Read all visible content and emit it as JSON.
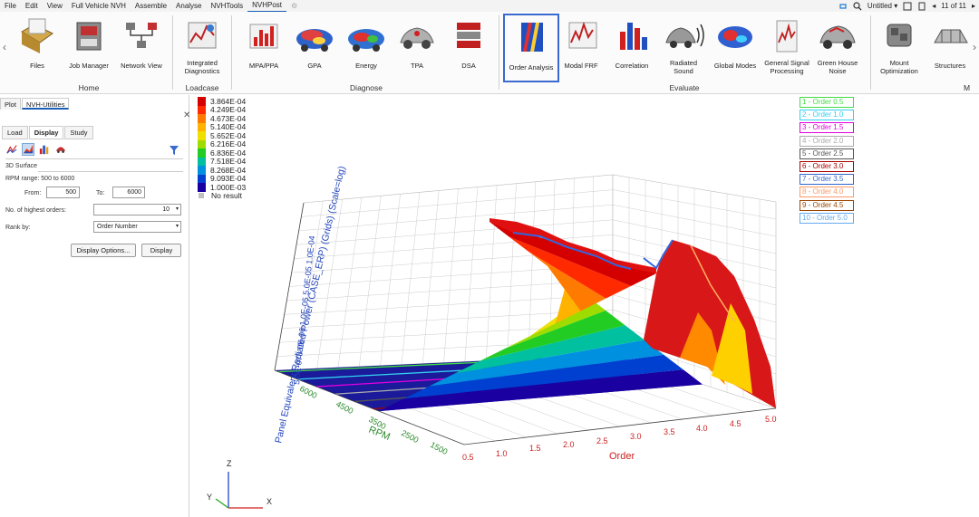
{
  "menu": {
    "items": [
      "File",
      "Edit",
      "View",
      "Full Vehicle NVH",
      "Assemble",
      "Analyse",
      "NVHTools",
      "NVHPost"
    ],
    "active": "NVHPost",
    "untitled": "Untitled",
    "page_counter": "11 of 11"
  },
  "ribbon": {
    "buttons": [
      {
        "label": "Files",
        "icon": "files-icon"
      },
      {
        "label": "Job Manager",
        "icon": "job-manager-icon"
      },
      {
        "label": "Network View",
        "icon": "network-view-icon"
      },
      {
        "label": "Integrated\nDiagnostics",
        "icon": "integrated-diagnostics-icon"
      },
      {
        "label": "MPA/PPA",
        "icon": "mpa-ppa-icon"
      },
      {
        "label": "GPA",
        "icon": "gpa-icon"
      },
      {
        "label": "Energy",
        "icon": "energy-icon"
      },
      {
        "label": "TPA",
        "icon": "tpa-icon"
      },
      {
        "label": "DSA",
        "icon": "dsa-icon"
      },
      {
        "label": "Order Analysis",
        "icon": "order-analysis-icon"
      },
      {
        "label": "Modal FRF",
        "icon": "modal-frf-icon"
      },
      {
        "label": "Correlation",
        "icon": "correlation-icon"
      },
      {
        "label": "Radiated\nSound",
        "icon": "radiated-sound-icon"
      },
      {
        "label": "Global Modes",
        "icon": "global-modes-icon"
      },
      {
        "label": "General Signal\nProcessing",
        "icon": "general-signal-processing-icon"
      },
      {
        "label": "Green House\nNoise",
        "icon": "green-house-noise-icon"
      },
      {
        "label": "Mount\nOptimization",
        "icon": "mount-optimization-icon"
      },
      {
        "label": "Structures",
        "icon": "structures-icon"
      }
    ],
    "groups": [
      "Home",
      "Loadcase",
      "Diagnose",
      "Evaluate",
      "M"
    ]
  },
  "panel": {
    "tabs": [
      "Plot",
      "NVH-Utilities"
    ],
    "subtabs": [
      "Load",
      "Display",
      "Study"
    ],
    "section_title": "3D Surface",
    "rpm_range": "RPM range: 500 to 6000",
    "from_label": "From:",
    "from_value": "500",
    "to_label": "To:",
    "to_value": "6000",
    "highest_orders_label": "No. of highest orders:",
    "highest_orders_value": "10",
    "rank_by_label": "Rank by:",
    "rank_by_value": "Order Number",
    "display_options_button": "Display Options...",
    "display_button": "Display"
  },
  "plot": {
    "colorbar": {
      "labels": [
        "3.864E-04",
        "4.249E-04",
        "4.673E-04",
        "5.140E-04",
        "5.652E-04",
        "6.216E-04",
        "6.836E-04",
        "7.518E-04",
        "8.268E-04",
        "9.093E-04",
        "1.000E-03"
      ],
      "colors": [
        "#d40000",
        "#ff2a00",
        "#ff7a00",
        "#ffb300",
        "#f0e000",
        "#9edc00",
        "#22cc22",
        "#00c0a0",
        "#0090e0",
        "#0040d0",
        "#1a00a0"
      ],
      "no_result": "No result",
      "no_result_color": "#c0c0c0"
    },
    "orders": [
      {
        "label": "1  - Order 0.5",
        "color": "#44dd44"
      },
      {
        "label": "2  - Order 1.0",
        "color": "#33d0f0"
      },
      {
        "label": "3  - Order 1.5",
        "color": "#e000e0"
      },
      {
        "label": "4  - Order 2.0",
        "color": "#aaaaaa"
      },
      {
        "label": "5  - Order 2.5",
        "color": "#555555"
      },
      {
        "label": "6  - Order 3.0",
        "color": "#aa0000"
      },
      {
        "label": "7  - Order 3.5",
        "color": "#3366cc"
      },
      {
        "label": "8  - Order 4.0",
        "color": "#ff9966"
      },
      {
        "label": "9  - Order 4.5",
        "color": "#994400"
      },
      {
        "label": "10  - Order 5.0",
        "color": "#66aaee"
      }
    ],
    "z_axis_label": "Panel Equivalent Radiated Power (CASE_ERP) (Grids) (Scale=log)",
    "z_ticks": [
      "1.0E-07",
      "5.0E-06",
      "1.0E-05",
      "5.0E-05",
      "1.0E-04"
    ],
    "z_tick_prefix": "5.0E-075.0E-06",
    "rpm_label": "RPM",
    "rpm_ticks": [
      "6000",
      "4500",
      "3500",
      "2500",
      "1500"
    ],
    "order_label": "Order",
    "order_ticks": [
      "0.5",
      "1.0",
      "1.5",
      "2.0",
      "2.5",
      "3.0",
      "3.5",
      "4.0",
      "4.5",
      "5.0"
    ],
    "triad": {
      "z": "Z",
      "y": "Y",
      "x": "X"
    }
  }
}
